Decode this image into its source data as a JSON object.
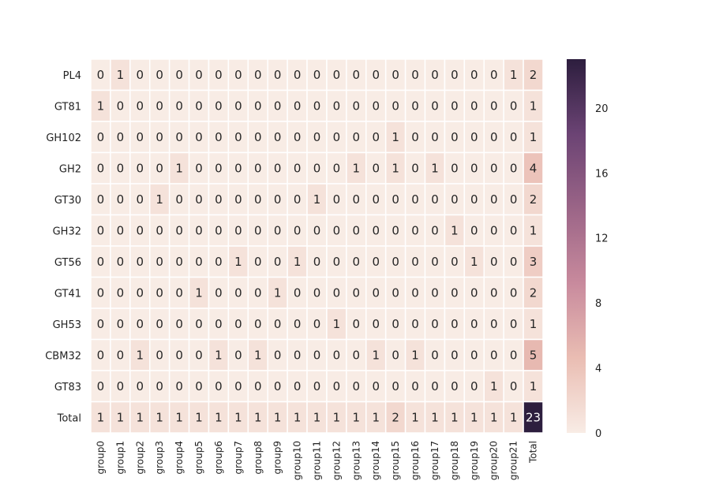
{
  "chart_data": {
    "type": "heatmap",
    "annotated": true,
    "rows": [
      "PL4",
      "GT81",
      "GH102",
      "GH2",
      "GT30",
      "GH32",
      "GT56",
      "GT41",
      "GH53",
      "CBM32",
      "GT83",
      "Total"
    ],
    "columns": [
      "group0",
      "group1",
      "group2",
      "group3",
      "group4",
      "group5",
      "group6",
      "group7",
      "group8",
      "group9",
      "group10",
      "group11",
      "group12",
      "group13",
      "group14",
      "group15",
      "group16",
      "group17",
      "group18",
      "group19",
      "group20",
      "group21",
      "Total"
    ],
    "values": [
      [
        0,
        1,
        0,
        0,
        0,
        0,
        0,
        0,
        0,
        0,
        0,
        0,
        0,
        0,
        0,
        0,
        0,
        0,
        0,
        0,
        0,
        1,
        2
      ],
      [
        1,
        0,
        0,
        0,
        0,
        0,
        0,
        0,
        0,
        0,
        0,
        0,
        0,
        0,
        0,
        0,
        0,
        0,
        0,
        0,
        0,
        0,
        1
      ],
      [
        0,
        0,
        0,
        0,
        0,
        0,
        0,
        0,
        0,
        0,
        0,
        0,
        0,
        0,
        0,
        1,
        0,
        0,
        0,
        0,
        0,
        0,
        1
      ],
      [
        0,
        0,
        0,
        0,
        1,
        0,
        0,
        0,
        0,
        0,
        0,
        0,
        0,
        1,
        0,
        1,
        0,
        1,
        0,
        0,
        0,
        0,
        4
      ],
      [
        0,
        0,
        0,
        1,
        0,
        0,
        0,
        0,
        0,
        0,
        0,
        1,
        0,
        0,
        0,
        0,
        0,
        0,
        0,
        0,
        0,
        0,
        2
      ],
      [
        0,
        0,
        0,
        0,
        0,
        0,
        0,
        0,
        0,
        0,
        0,
        0,
        0,
        0,
        0,
        0,
        0,
        0,
        1,
        0,
        0,
        0,
        1
      ],
      [
        0,
        0,
        0,
        0,
        0,
        0,
        0,
        1,
        0,
        0,
        1,
        0,
        0,
        0,
        0,
        0,
        0,
        0,
        0,
        1,
        0,
        0,
        3
      ],
      [
        0,
        0,
        0,
        0,
        0,
        1,
        0,
        0,
        0,
        1,
        0,
        0,
        0,
        0,
        0,
        0,
        0,
        0,
        0,
        0,
        0,
        0,
        2
      ],
      [
        0,
        0,
        0,
        0,
        0,
        0,
        0,
        0,
        0,
        0,
        0,
        0,
        1,
        0,
        0,
        0,
        0,
        0,
        0,
        0,
        0,
        0,
        1
      ],
      [
        0,
        0,
        1,
        0,
        0,
        0,
        1,
        0,
        1,
        0,
        0,
        0,
        0,
        0,
        1,
        0,
        1,
        0,
        0,
        0,
        0,
        0,
        5
      ],
      [
        0,
        0,
        0,
        0,
        0,
        0,
        0,
        0,
        0,
        0,
        0,
        0,
        0,
        0,
        0,
        0,
        0,
        0,
        0,
        0,
        1,
        0,
        1
      ],
      [
        1,
        1,
        1,
        1,
        1,
        1,
        1,
        1,
        1,
        1,
        1,
        1,
        1,
        1,
        1,
        2,
        1,
        1,
        1,
        1,
        1,
        1,
        23
      ]
    ],
    "colorbar": {
      "min": 0,
      "max": 23,
      "ticks": [
        0,
        4,
        8,
        12,
        16,
        20
      ]
    },
    "colors": {
      "low": "#f8ece5",
      "mid1": "#eabdb3",
      "mid2": "#c88a9d",
      "mid3": "#9b6587",
      "mid4": "#6b4374",
      "high": "#2d1e3e",
      "text_dark": "#262626",
      "text_light": "#ffffff",
      "grid": "#ffffff"
    }
  }
}
